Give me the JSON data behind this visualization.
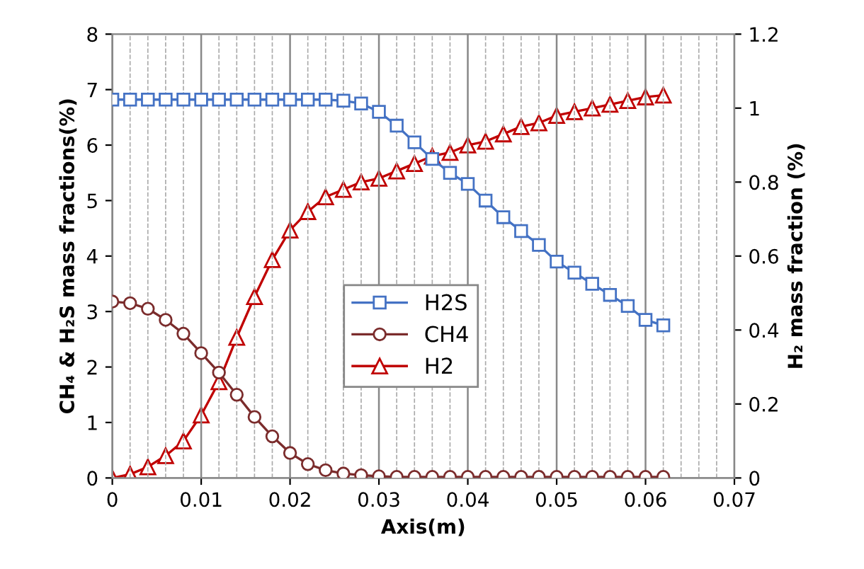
{
  "chart_data": {
    "type": "line",
    "xlabel": "Axis(m)",
    "ylabel": "CH₄ & H₂S mass fractions(%)",
    "y2label": "H₂ mass fraction (%)",
    "x": [
      0,
      0.002,
      0.004,
      0.006,
      0.008,
      0.01,
      0.012,
      0.014,
      0.016,
      0.018,
      0.02,
      0.022,
      0.024,
      0.026,
      0.028,
      0.03,
      0.032,
      0.034,
      0.036,
      0.038,
      0.04,
      0.042,
      0.044,
      0.046,
      0.048,
      0.05,
      0.052,
      0.054,
      0.056,
      0.058,
      0.06,
      0.062
    ],
    "series": [
      {
        "name": "H2S",
        "color": "#4472c4",
        "marker": "square",
        "values": [
          6.82,
          6.82,
          6.82,
          6.82,
          6.82,
          6.82,
          6.82,
          6.82,
          6.82,
          6.82,
          6.82,
          6.82,
          6.82,
          6.8,
          6.75,
          6.6,
          6.35,
          6.05,
          5.75,
          5.5,
          5.3,
          5.0,
          4.7,
          4.45,
          4.2,
          3.9,
          3.7,
          3.5,
          3.3,
          3.1,
          2.85,
          2.75
        ]
      },
      {
        "name": "CH4",
        "color": "#7b2c2c",
        "marker": "circle",
        "values": [
          3.18,
          3.15,
          3.05,
          2.85,
          2.6,
          2.25,
          1.9,
          1.5,
          1.1,
          0.75,
          0.45,
          0.25,
          0.14,
          0.08,
          0.05,
          0.03,
          0.02,
          0.02,
          0.02,
          0.02,
          0.02,
          0.02,
          0.02,
          0.02,
          0.02,
          0.02,
          0.02,
          0.02,
          0.02,
          0.02,
          0.02,
          0.02
        ]
      },
      {
        "name": "H2",
        "color": "#c00000",
        "marker": "triangle",
        "axis": "y2",
        "values": [
          0,
          0.01,
          0.03,
          0.06,
          0.1,
          0.17,
          0.26,
          0.38,
          0.49,
          0.59,
          0.67,
          0.72,
          0.76,
          0.78,
          0.8,
          0.81,
          0.83,
          0.85,
          0.87,
          0.88,
          0.9,
          0.91,
          0.93,
          0.95,
          0.96,
          0.98,
          0.99,
          1.0,
          1.01,
          1.02,
          1.03,
          1.035
        ]
      }
    ],
    "xlim": [
      0,
      0.07
    ],
    "xticks": [
      0,
      0.01,
      0.02,
      0.03,
      0.04,
      0.05,
      0.06,
      0.07
    ],
    "ylim": [
      0,
      8
    ],
    "yticks": [
      0,
      1,
      2,
      3,
      4,
      5,
      6,
      7,
      8
    ],
    "y2lim": [
      0,
      1.2
    ],
    "y2ticks": [
      0,
      0.2,
      0.4,
      0.6,
      0.8,
      1,
      1.2
    ],
    "grid": "x",
    "legend": "center",
    "line_style": "solid"
  }
}
